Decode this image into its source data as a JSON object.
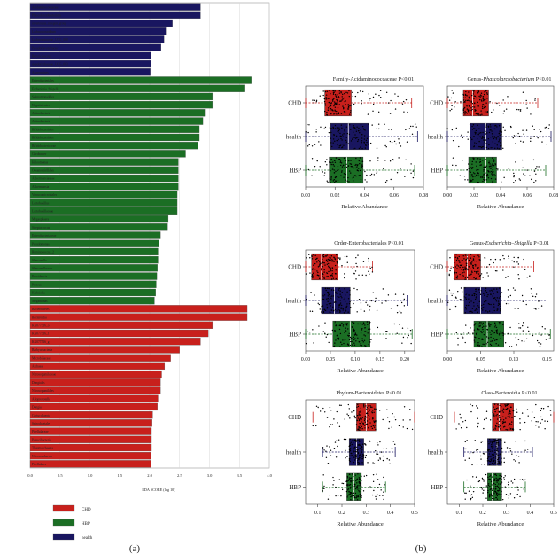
{
  "panel_labels": [
    "(a)",
    "(b)"
  ],
  "colors": {
    "CHD": "#c8201c",
    "HBP": "#1b6e24",
    "health": "#191660"
  },
  "chart_data": [
    {
      "type": "bar",
      "orientation": "horizontal",
      "xlabel": "LDA SCORE (log 10)",
      "xlim": [
        0,
        4.0
      ],
      "xticks": [
        "0.0",
        "0.5",
        "1.0",
        "1.5",
        "2.0",
        "2.5",
        "3.0",
        "3.5",
        "4.0"
      ],
      "legend": {
        "placement": "bottom-left",
        "entries": [
          "CHD",
          "HBP",
          "health"
        ]
      },
      "grid": true,
      "categories": [
        "Acidaminococcaceae",
        "Phascolarctobacterium",
        "invertoutus_ruregen_group",
        "Lachnoclostridium",
        "Lachnospiraceae_UCG_008",
        "Pseudoflavonifractor",
        "Butyricicoccus",
        "siepdofrichaceae_UCG_003",
        "Anaerostipes",
        "Enterobacteriales",
        "Escherichia_Shigella",
        "Selenomonadales",
        "Negativicutes",
        "Actinobacteria",
        "Actinobacteria",
        "Bifidobacteriales",
        "Bifidobacteriales",
        "Bifidobacteriaceae",
        "Citrobacter",
        "Haloomonas",
        "Oceanospirillales",
        "Akkermansiaceae",
        "Akkermansia",
        "Verrucomicrobiales",
        "Lactobacillus",
        "Lactobacillaceae",
        "Megasphaera",
        "Streptococcus",
        "Enterobacteriaceae",
        "Pseudomonas",
        "Ruminococcus_2",
        "Shewanella",
        "Shewanellaceae",
        "Providencia",
        "Proteus",
        "Klebsiella",
        "Megamonas",
        "Bacteroidetes",
        "Bacteroidia",
        "KX077516_o",
        "KX077516_f",
        "KX077516_g",
        "Barbyurbacteria",
        "Microbiliaceae",
        "Archaea",
        "Nitrosopumilaceae",
        "Dongiales",
        "Nitrosopumilales",
        "Alloprevotella",
        "Dongia",
        "Coriucchaeota",
        "Spirochaetales",
        "Pirellulaceae",
        "Patescibacteria",
        "Thaumarchaeota",
        "Nitrososphaeria",
        "Pirellulales"
      ],
      "groups": [
        "health",
        "health",
        "health",
        "health",
        "health",
        "health",
        "health",
        "health",
        "health",
        "HBP",
        "HBP",
        "HBP",
        "HBP",
        "HBP",
        "HBP",
        "HBP",
        "HBP",
        "HBP",
        "HBP",
        "HBP",
        "HBP",
        "HBP",
        "HBP",
        "HBP",
        "HBP",
        "HBP",
        "HBP",
        "HBP",
        "HBP",
        "HBP",
        "HBP",
        "HBP",
        "HBP",
        "HBP",
        "HBP",
        "HBP",
        "HBP",
        "CHD",
        "CHD",
        "CHD",
        "CHD",
        "CHD",
        "CHD",
        "CHD",
        "CHD",
        "CHD",
        "CHD",
        "CHD",
        "CHD",
        "CHD",
        "CHD",
        "CHD",
        "CHD",
        "CHD",
        "CHD",
        "CHD",
        "CHD"
      ],
      "values": [
        2.85,
        2.85,
        2.38,
        2.27,
        2.24,
        2.19,
        2.02,
        2.02,
        2.01,
        3.7,
        3.58,
        3.05,
        3.05,
        2.92,
        2.89,
        2.83,
        2.83,
        2.81,
        2.6,
        2.48,
        2.48,
        2.48,
        2.48,
        2.46,
        2.46,
        2.46,
        2.31,
        2.3,
        2.18,
        2.16,
        2.14,
        2.14,
        2.13,
        2.12,
        2.11,
        2.1,
        2.08,
        3.63,
        3.63,
        3.05,
        2.98,
        2.85,
        2.5,
        2.35,
        2.25,
        2.2,
        2.18,
        2.18,
        2.14,
        2.13,
        2.05,
        2.04,
        2.03,
        2.03,
        2.03,
        2.02,
        2.02
      ]
    },
    {
      "type": "box",
      "title": "Family-Acidaminococcaceae P<0.01",
      "xlabel": "Relative Abundance",
      "xlim": [
        0,
        0.08
      ],
      "xticks": [
        "0.00",
        "0.02",
        "0.04",
        "0.06",
        "0.08"
      ],
      "series": [
        {
          "name": "CHD",
          "min": 0.0,
          "q1": 0.013,
          "median": 0.022,
          "q3": 0.031,
          "max": 0.072
        },
        {
          "name": "health",
          "min": 0.0,
          "q1": 0.017,
          "median": 0.029,
          "q3": 0.043,
          "max": 0.076
        },
        {
          "name": "HBP",
          "min": 0.0,
          "q1": 0.016,
          "median": 0.028,
          "q3": 0.039,
          "max": 0.074
        }
      ]
    },
    {
      "type": "box",
      "title_prefix": "Genus-",
      "title_taxon": "Phascolarctobacterium",
      "title_suffix": " P<0.01",
      "xlabel": "Relative Abundance",
      "xlim": [
        0,
        0.08
      ],
      "xticks": [
        "0.00",
        "0.02",
        "0.04",
        "0.06",
        "0.08"
      ],
      "series": [
        {
          "name": "CHD",
          "min": 0.0,
          "q1": 0.012,
          "median": 0.019,
          "q3": 0.031,
          "max": 0.068
        },
        {
          "name": "health",
          "min": 0.0,
          "q1": 0.017,
          "median": 0.029,
          "q3": 0.041,
          "max": 0.078
        },
        {
          "name": "HBP",
          "min": 0.0,
          "q1": 0.016,
          "median": 0.029,
          "q3": 0.037,
          "max": 0.074
        }
      ]
    },
    {
      "type": "box",
      "title": "Order-Enterobacteriales P<0.01",
      "xlabel": "Relative Abundance",
      "xlim": [
        0,
        0.22
      ],
      "xticks": [
        "0.00",
        "0.05",
        "0.10",
        "0.15",
        "0.20"
      ],
      "series": [
        {
          "name": "CHD",
          "min": 0.0,
          "q1": 0.012,
          "median": 0.032,
          "q3": 0.065,
          "max": 0.135
        },
        {
          "name": "health",
          "min": 0.0,
          "q1": 0.032,
          "median": 0.058,
          "q3": 0.09,
          "max": 0.205
        },
        {
          "name": "HBP",
          "min": 0.0,
          "q1": 0.055,
          "median": 0.09,
          "q3": 0.13,
          "max": 0.215
        }
      ]
    },
    {
      "type": "box",
      "title_prefix": "Genus-",
      "title_taxon": "Escherichia–Shigella",
      "title_suffix": " P<0.01",
      "xlabel": "Relative Abundance",
      "xlim": [
        0,
        0.16
      ],
      "xticks": [
        "0.00",
        "0.05",
        "0.10",
        "0.15"
      ],
      "series": [
        {
          "name": "CHD",
          "min": 0.0,
          "q1": 0.01,
          "median": 0.03,
          "q3": 0.05,
          "max": 0.13
        },
        {
          "name": "health",
          "min": 0.0,
          "q1": 0.025,
          "median": 0.05,
          "q3": 0.08,
          "max": 0.15
        },
        {
          "name": "HBP",
          "min": 0.0,
          "q1": 0.04,
          "median": 0.06,
          "q3": 0.085,
          "max": 0.155
        }
      ]
    },
    {
      "type": "box",
      "title": "Phylum-Bacteroidetes P<0.01",
      "xlabel": "Relative Abundance",
      "xlim": [
        0.05,
        0.5
      ],
      "xticks": [
        "0.1",
        "0.2",
        "0.3",
        "0.4",
        "0.5"
      ],
      "series": [
        {
          "name": "CHD",
          "min": 0.08,
          "q1": 0.26,
          "median": 0.3,
          "q3": 0.34,
          "max": 0.5
        },
        {
          "name": "health",
          "min": 0.12,
          "q1": 0.23,
          "median": 0.26,
          "q3": 0.29,
          "max": 0.42
        },
        {
          "name": "HBP",
          "min": 0.12,
          "q1": 0.22,
          "median": 0.25,
          "q3": 0.28,
          "max": 0.38
        }
      ]
    },
    {
      "type": "box",
      "title": "Class-Bacteroidia P<0.01",
      "xlabel": "Relative Abundance",
      "xlim": [
        0.05,
        0.5
      ],
      "xticks": [
        "0.1",
        "0.2",
        "0.3",
        "0.4",
        "0.5"
      ],
      "series": [
        {
          "name": "CHD",
          "min": 0.08,
          "q1": 0.24,
          "median": 0.27,
          "q3": 0.33,
          "max": 0.5
        },
        {
          "name": "health",
          "min": 0.12,
          "q1": 0.22,
          "median": 0.26,
          "q3": 0.28,
          "max": 0.41
        },
        {
          "name": "HBP",
          "min": 0.12,
          "q1": 0.22,
          "median": 0.24,
          "q3": 0.28,
          "max": 0.38
        }
      ]
    }
  ]
}
